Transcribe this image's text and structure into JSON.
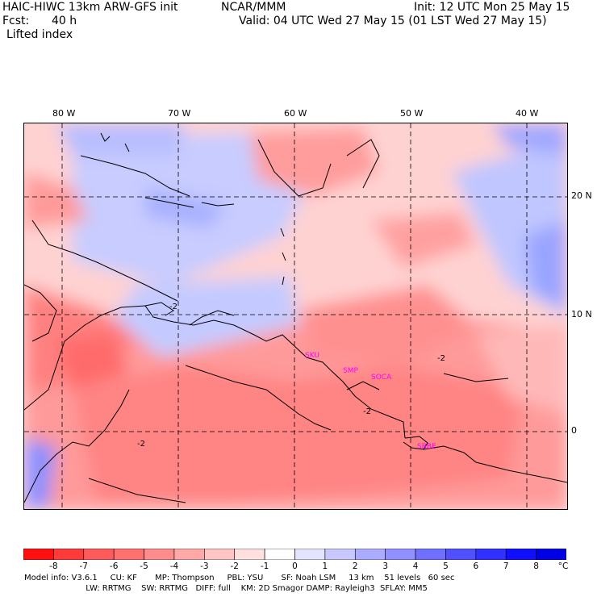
{
  "header": {
    "model_title": "HAIC-HIWC 13km ARW-GFS init",
    "org": "NCAR/MMM",
    "init": "Init: 12 UTC Mon 25 May 15",
    "fcst_label": "Fcst:",
    "fcst_value": "40 h",
    "valid": "Valid: 04 UTC Wed 27 May 15 (01 LST Wed 27 May 15)",
    "field": "Lifted index"
  },
  "map": {
    "lon_labels": [
      "80 W",
      "70 W",
      "60 W",
      "50 W",
      "40 W"
    ],
    "lat_labels": [
      "20 N",
      "10 N",
      "0"
    ],
    "stations": [
      "SKU",
      "SMP",
      "SOCA",
      "SBBE"
    ],
    "contour_labels": [
      "-2",
      "-2",
      "-2",
      "-2"
    ]
  },
  "colorbar": {
    "labels": [
      "-8",
      "-7",
      "-6",
      "-5",
      "-4",
      "-3",
      "-2",
      "-1",
      "0",
      "1",
      "2",
      "3",
      "4",
      "5",
      "6",
      "7",
      "8",
      "°C"
    ],
    "colors": [
      "#ff1010",
      "#ff3a3a",
      "#ff5a5a",
      "#ff7070",
      "#ff8c8c",
      "#ffa8a8",
      "#ffc4c4",
      "#ffe0e0",
      "#ffffff",
      "#e4e4ff",
      "#c8c8ff",
      "#acacff",
      "#9090ff",
      "#7070ff",
      "#5050ff",
      "#3030ff",
      "#1010ff",
      "#0000e6"
    ]
  },
  "footer": {
    "line1": "Model info: V3.6.1     CU: KF       MP: Thompson     PBL: YSU       SF: Noah LSM     13 km    51 levels   60 sec",
    "line2": "                        LW: RRTMG    SW: RRTMG   DIFF: full    KM: 2D Smagor DAMP: Rayleigh3  SFLAY: MM5"
  }
}
